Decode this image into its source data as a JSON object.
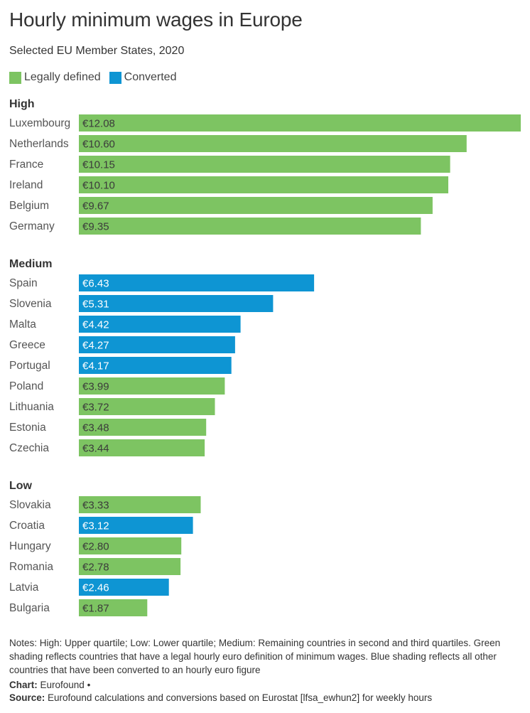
{
  "title": "Hourly minimum wages in Europe",
  "subtitle": "Selected EU Member States, 2020",
  "legend": [
    {
      "label": "Legally defined",
      "color": "#7dc462"
    },
    {
      "label": "Converted",
      "color": "#0e95d3"
    }
  ],
  "colors": {
    "legally_defined": "#7dc462",
    "converted": "#0e95d3"
  },
  "chart_data": {
    "type": "bar",
    "orientation": "horizontal",
    "xlim": [
      0,
      12.08
    ],
    "groups": [
      {
        "name": "High",
        "bars": [
          {
            "country": "Luxembourg",
            "value": 12.08,
            "label": "€12.08",
            "type": "Legally defined"
          },
          {
            "country": "Netherlands",
            "value": 10.6,
            "label": "€10.60",
            "type": "Legally defined"
          },
          {
            "country": "France",
            "value": 10.15,
            "label": "€10.15",
            "type": "Legally defined"
          },
          {
            "country": "Ireland",
            "value": 10.1,
            "label": "€10.10",
            "type": "Legally defined"
          },
          {
            "country": "Belgium",
            "value": 9.67,
            "label": "€9.67",
            "type": "Legally defined"
          },
          {
            "country": "Germany",
            "value": 9.35,
            "label": "€9.35",
            "type": "Legally defined"
          }
        ]
      },
      {
        "name": "Medium",
        "bars": [
          {
            "country": "Spain",
            "value": 6.43,
            "label": "€6.43",
            "type": "Converted"
          },
          {
            "country": "Slovenia",
            "value": 5.31,
            "label": "€5.31",
            "type": "Converted"
          },
          {
            "country": "Malta",
            "value": 4.42,
            "label": "€4.42",
            "type": "Converted"
          },
          {
            "country": "Greece",
            "value": 4.27,
            "label": "€4.27",
            "type": "Converted"
          },
          {
            "country": "Portugal",
            "value": 4.17,
            "label": "€4.17",
            "type": "Converted"
          },
          {
            "country": "Poland",
            "value": 3.99,
            "label": "€3.99",
            "type": "Legally defined"
          },
          {
            "country": "Lithuania",
            "value": 3.72,
            "label": "€3.72",
            "type": "Legally defined"
          },
          {
            "country": "Estonia",
            "value": 3.48,
            "label": "€3.48",
            "type": "Legally defined"
          },
          {
            "country": "Czechia",
            "value": 3.44,
            "label": "€3.44",
            "type": "Legally defined"
          }
        ]
      },
      {
        "name": "Low",
        "bars": [
          {
            "country": "Slovakia",
            "value": 3.33,
            "label": "€3.33",
            "type": "Legally defined"
          },
          {
            "country": "Croatia",
            "value": 3.12,
            "label": "€3.12",
            "type": "Converted"
          },
          {
            "country": "Hungary",
            "value": 2.8,
            "label": "€2.80",
            "type": "Legally defined"
          },
          {
            "country": "Romania",
            "value": 2.78,
            "label": "€2.78",
            "type": "Legally defined"
          },
          {
            "country": "Latvia",
            "value": 2.46,
            "label": "€2.46",
            "type": "Converted"
          },
          {
            "country": "Bulgaria",
            "value": 1.87,
            "label": "€1.87",
            "type": "Legally defined"
          }
        ]
      }
    ]
  },
  "notes": "Notes: High: Upper quartile; Low: Lower quartile; Medium: Remaining countries in second and third quartiles. Green shading reflects countries that have a legal hourly euro definition of minimum wages. Blue shading reflects all other countries that have been converted to an hourly euro figure",
  "chart_credit": {
    "label": "Chart:",
    "value": "Eurofound •"
  },
  "source": {
    "label": "Source:",
    "value": "Eurofound calculations and conversions based on Eurostat [lfsa_ewhun2] for weekly hours"
  }
}
